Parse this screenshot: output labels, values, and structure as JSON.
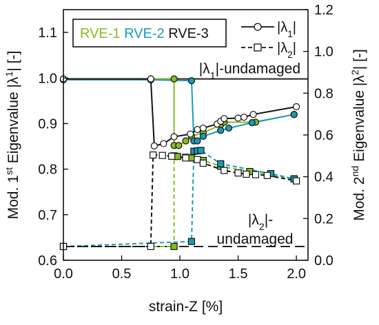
{
  "chart_data": {
    "type": "line",
    "xlabel": "strain-Z [%]",
    "ylabel_left_parts": [
      "Mod. 1",
      "st",
      " Eigenvalue  |λ",
      "1",
      "|  [-]"
    ],
    "ylabel_right_parts": [
      "Mod. 2",
      "nd",
      " Eigenvalue  |λ",
      "2",
      "|  [-]"
    ],
    "xlim": [
      0.0,
      2.1
    ],
    "ylim_left": [
      0.6,
      1.15
    ],
    "ylim_right": [
      0.0,
      1.2
    ],
    "x_ticks": [
      "0.0",
      "0.5",
      "1.0",
      "1.5",
      "2.0"
    ],
    "y_left_ticks": [
      "0.6",
      "0.7",
      "0.8",
      "0.9",
      "1.0",
      "1.1"
    ],
    "y_right_ticks": [
      "0.0",
      "0.2",
      "0.4",
      "0.6",
      "0.8",
      "1.0",
      "1.2"
    ],
    "legend_rve": [
      {
        "label": "RVE-1",
        "color": "#86bc25"
      },
      {
        "label": "RVE-2",
        "color": "#1a9bb5"
      },
      {
        "label": "RVE-3",
        "color": "#111111"
      }
    ],
    "legend_lambda": [
      {
        "label_parts": [
          "|λ",
          "1",
          "|"
        ],
        "marker": "circle",
        "dash": "solid"
      },
      {
        "label_parts": [
          "|λ",
          "2",
          "|"
        ],
        "marker": "square",
        "dash": "dashed"
      }
    ],
    "reference_lines": [
      {
        "label_parts": [
          "|λ",
          "1",
          "|-undamaged"
        ],
        "axis": "left",
        "y": 0.998,
        "dash": "solid"
      },
      {
        "label_line1_parts": [
          "|λ",
          "2",
          "|-"
        ],
        "label_line2": "undamaged",
        "axis": "right",
        "y": 0.066,
        "dash": "dashed"
      }
    ],
    "series": [
      {
        "key": "rve1_l1",
        "rve": "RVE-1",
        "quantity": "|λ1|",
        "axis": "left",
        "marker": "circle",
        "dash": "solid",
        "color": "#86bc25",
        "fill": "#86bc25",
        "x": [
          0.0,
          0.75,
          0.95,
          0.95,
          0.99,
          1.05,
          1.1,
          1.2,
          1.35,
          1.38,
          1.65,
          1.98
        ],
        "y": [
          0.998,
          0.998,
          0.998,
          0.852,
          0.852,
          0.862,
          0.872,
          0.88,
          0.897,
          0.903,
          0.903,
          0.92
        ]
      },
      {
        "key": "rve2_l1",
        "rve": "RVE-2",
        "quantity": "|λ1|",
        "axis": "left",
        "marker": "circle",
        "dash": "solid",
        "color": "#1a9bb5",
        "fill": "#1a9bb5",
        "x": [
          0.0,
          0.75,
          1.1,
          1.12,
          1.15,
          1.2,
          1.35,
          1.42,
          1.62,
          1.98
        ],
        "y": [
          0.996,
          0.996,
          0.994,
          0.862,
          0.862,
          0.872,
          0.885,
          0.89,
          0.902,
          0.92
        ]
      },
      {
        "key": "rve3_l1",
        "rve": "RVE-3",
        "quantity": "|λ1|",
        "axis": "left",
        "marker": "circle",
        "dash": "solid",
        "color": "#111111",
        "fill": "#ffffff",
        "x": [
          0.0,
          0.75,
          0.78,
          0.86,
          0.95,
          1.09,
          1.15,
          1.2,
          1.32,
          1.35,
          1.38,
          1.5,
          1.55,
          1.63,
          2.0
        ],
        "y": [
          0.998,
          0.998,
          0.851,
          0.856,
          0.871,
          0.877,
          0.887,
          0.89,
          0.899,
          0.905,
          0.911,
          0.912,
          0.914,
          0.92,
          0.937
        ]
      },
      {
        "key": "rve1_l2",
        "rve": "RVE-1",
        "quantity": "|λ2|",
        "axis": "right",
        "marker": "square",
        "dash": "dashed",
        "color": "#86bc25",
        "fill": "#86bc25",
        "x": [
          0.0,
          0.95,
          0.95,
          0.98,
          1.05,
          1.1,
          1.2,
          1.35,
          1.6,
          1.98
        ],
        "y": [
          0.066,
          0.066,
          0.5,
          0.497,
          0.493,
          0.49,
          0.478,
          0.45,
          0.425,
          0.39
        ]
      },
      {
        "key": "rve2_l2",
        "rve": "RVE-2",
        "quantity": "|λ2|",
        "axis": "right",
        "marker": "square",
        "dash": "dashed",
        "color": "#1a9bb5",
        "fill": "#1a9bb5",
        "x": [
          0.0,
          1.1,
          1.12,
          1.15,
          1.18,
          1.35,
          1.78,
          1.98
        ],
        "y": [
          0.066,
          0.09,
          0.522,
          0.524,
          0.526,
          0.462,
          0.415,
          0.39
        ]
      },
      {
        "key": "rve3_l2",
        "rve": "RVE-3",
        "quantity": "|λ2|",
        "axis": "right",
        "marker": "square",
        "dash": "dashed",
        "color": "#111111",
        "fill": "#ffffff",
        "x": [
          0.0,
          0.75,
          0.77,
          0.85,
          0.93,
          1.05,
          1.15,
          1.2,
          1.38,
          1.5,
          1.57,
          1.65,
          1.75,
          2.0
        ],
        "y": [
          0.066,
          0.066,
          0.504,
          0.502,
          0.498,
          0.49,
          0.482,
          0.465,
          0.43,
          0.418,
          0.412,
          0.41,
          0.406,
          0.38
        ]
      }
    ]
  }
}
